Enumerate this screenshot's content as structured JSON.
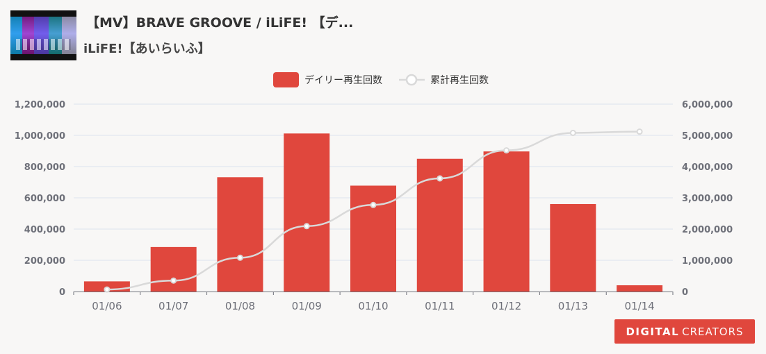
{
  "header": {
    "title": "【MV】BRAVE GROOVE / iLiFE! 【デ...",
    "channel": "iLiFE!【あいらいふ】"
  },
  "logo": {
    "text_bold": "DIGITAL",
    "text_light": "CREATORS"
  },
  "chart_data": {
    "type": "bar",
    "categories": [
      "01/06",
      "01/07",
      "01/08",
      "01/09",
      "01/10",
      "01/11",
      "01/12",
      "01/13",
      "01/14"
    ],
    "series": [
      {
        "name": "デイリー再生回数",
        "type": "bar",
        "axis": "left",
        "values": [
          65000,
          285000,
          732000,
          1012000,
          678000,
          850000,
          897000,
          560000,
          40000
        ]
      },
      {
        "name": "累計再生回数",
        "type": "line",
        "axis": "right",
        "values": [
          65000,
          350000,
          1082000,
          2094000,
          2772000,
          3622000,
          4519000,
          5079000,
          5119000
        ]
      }
    ],
    "y_left": {
      "min": 0,
      "max": 1200000,
      "ticks": [
        "0",
        "200,000",
        "400,000",
        "600,000",
        "800,000",
        "1,000,000",
        "1,200,000"
      ]
    },
    "y_right": {
      "min": 0,
      "max": 6000000,
      "ticks": [
        "0",
        "1,000,000",
        "2,000,000",
        "3,000,000",
        "4,000,000",
        "5,000,000",
        "6,000,000"
      ]
    },
    "legend_position": "top-center",
    "grid": true,
    "colors": {
      "bar": "#e0473d",
      "line": "#d9d9d9",
      "grid": "#dde3ef",
      "axis": "#6e7079"
    }
  }
}
